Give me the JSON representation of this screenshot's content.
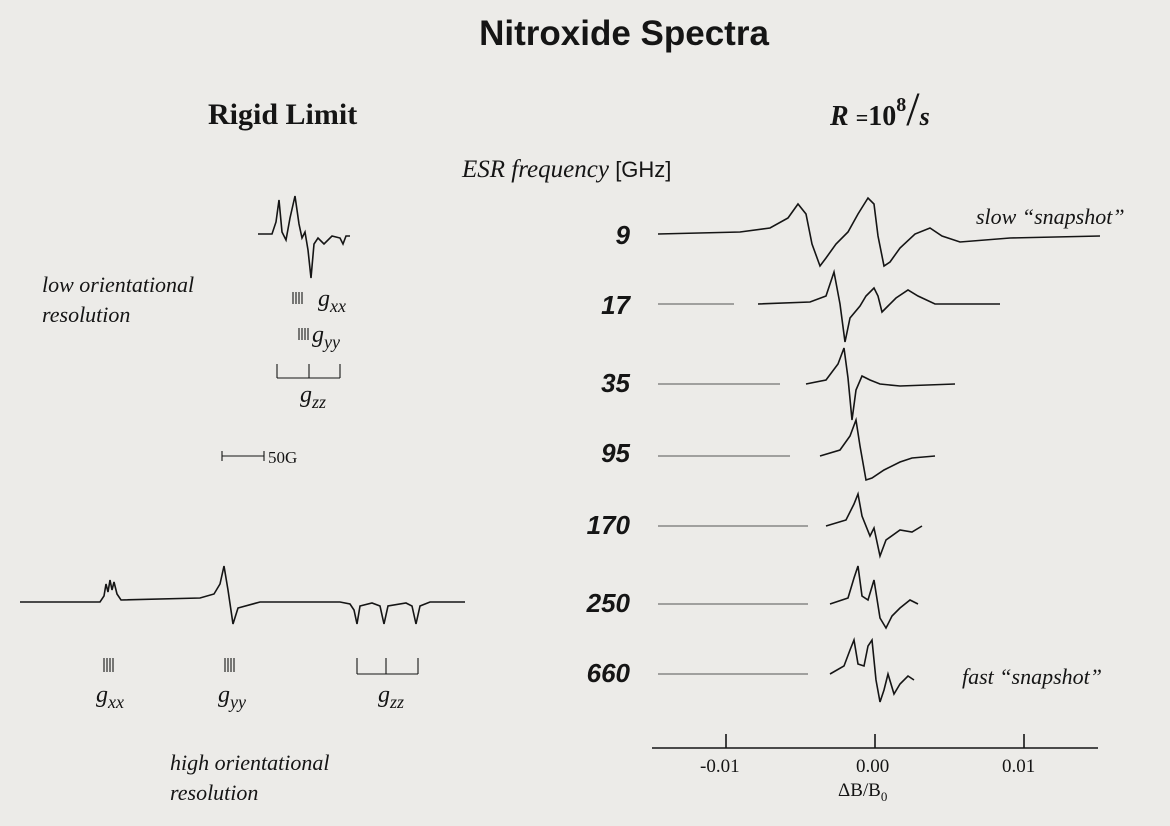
{
  "title": "Nitroxide Spectra",
  "left": {
    "heading": "Rigid Limit",
    "low_label": [
      "low orientational",
      "resolution"
    ],
    "high_label": [
      "high orientational",
      "resolution"
    ],
    "scale_bar": "50G",
    "g_labels": {
      "g": "g",
      "xx": "xx",
      "yy": "yy",
      "zz": "zz"
    }
  },
  "right": {
    "rate_symbol": "R",
    "rate_eq": "=",
    "rate_base": "10",
    "rate_exp": "8",
    "rate_unit": "s",
    "freq_axis_label": "ESR frequency",
    "freq_unit": "[GHz]",
    "frequencies": [
      "9",
      "17",
      "35",
      "95",
      "170",
      "250",
      "660"
    ],
    "slow_label": "slow “snapshot”",
    "fast_label": "fast “snapshot”",
    "axis": {
      "ticks": [
        "-0.01",
        "0.00",
        "0.01"
      ],
      "label": "ΔB/B",
      "label_sub": "0"
    }
  }
}
